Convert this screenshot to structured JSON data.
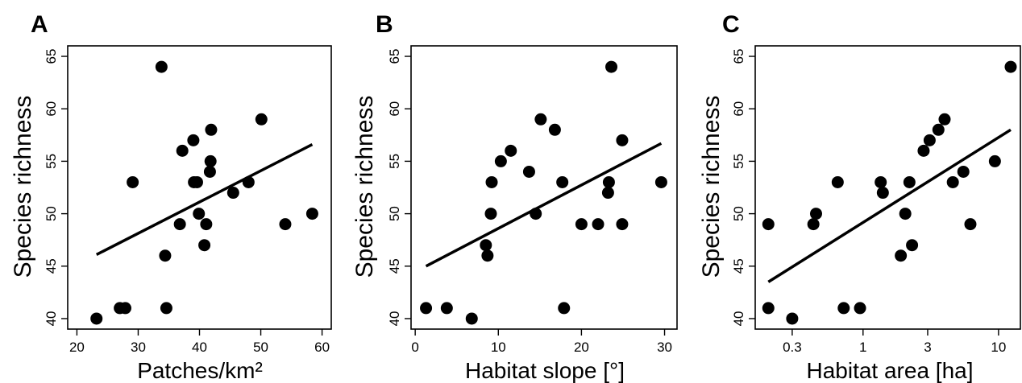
{
  "chart_data": [
    {
      "type": "scatter",
      "panel": "A",
      "xlabel": "Patches/km²",
      "ylabel": "Species richness",
      "xscale": "linear",
      "xlim": [
        18.5,
        61.5
      ],
      "ylim": [
        39,
        66
      ],
      "xticks": [
        20,
        30,
        40,
        50,
        60
      ],
      "xtick_labels": [
        "20",
        "30",
        "40",
        "50",
        "60"
      ],
      "yticks": [
        40,
        45,
        50,
        55,
        60,
        65
      ],
      "ytick_labels": [
        "40",
        "45",
        "50",
        "55",
        "60",
        "65"
      ],
      "points": [
        [
          23.2,
          40
        ],
        [
          27.0,
          41
        ],
        [
          27.9,
          41
        ],
        [
          29.1,
          53
        ],
        [
          33.8,
          64
        ],
        [
          34.4,
          46
        ],
        [
          34.6,
          41
        ],
        [
          36.8,
          49
        ],
        [
          37.2,
          56
        ],
        [
          39.0,
          57
        ],
        [
          39.1,
          53
        ],
        [
          39.6,
          53
        ],
        [
          39.9,
          50
        ],
        [
          40.8,
          47
        ],
        [
          41.1,
          49
        ],
        [
          41.7,
          54
        ],
        [
          41.8,
          55
        ],
        [
          41.9,
          58
        ],
        [
          45.5,
          52
        ],
        [
          48.0,
          53
        ],
        [
          50.1,
          59
        ],
        [
          54.0,
          49
        ],
        [
          58.4,
          50
        ]
      ],
      "fit": [
        [
          23.2,
          46.1
        ],
        [
          58.4,
          56.6
        ]
      ]
    },
    {
      "type": "scatter",
      "panel": "B",
      "xlabel": "Habitat slope [°]",
      "ylabel": "Species richness",
      "xscale": "linear",
      "xlim": [
        -0.5,
        31.5
      ],
      "ylim": [
        39,
        66
      ],
      "xticks": [
        0,
        10,
        20,
        30
      ],
      "xtick_labels": [
        "0",
        "10",
        "20",
        "30"
      ],
      "yticks": [
        40,
        45,
        50,
        55,
        60,
        65
      ],
      "ytick_labels": [
        "40",
        "45",
        "50",
        "55",
        "60",
        "65"
      ],
      "points": [
        [
          1.3,
          41
        ],
        [
          3.8,
          41
        ],
        [
          6.8,
          40
        ],
        [
          8.5,
          47
        ],
        [
          8.7,
          46
        ],
        [
          9.1,
          50
        ],
        [
          9.2,
          53
        ],
        [
          10.3,
          55
        ],
        [
          11.5,
          56
        ],
        [
          13.7,
          54
        ],
        [
          14.5,
          50
        ],
        [
          15.1,
          59
        ],
        [
          16.8,
          58
        ],
        [
          17.7,
          53
        ],
        [
          17.9,
          41
        ],
        [
          20.0,
          49
        ],
        [
          22.0,
          49
        ],
        [
          23.2,
          52
        ],
        [
          23.3,
          53
        ],
        [
          23.6,
          64
        ],
        [
          24.9,
          49
        ],
        [
          24.9,
          57
        ],
        [
          29.6,
          53
        ]
      ],
      "fit": [
        [
          1.3,
          45.0
        ],
        [
          29.6,
          56.7
        ]
      ]
    },
    {
      "type": "scatter",
      "panel": "C",
      "xlabel": "Habitat area [ha]",
      "ylabel": "Species richness",
      "xscale": "log",
      "xlim": [
        0.16,
        14.5
      ],
      "ylim": [
        39,
        66
      ],
      "xticks": [
        0.3,
        1,
        3,
        10
      ],
      "xtick_labels": [
        "0.3",
        "1",
        "3",
        "10"
      ],
      "yticks": [
        40,
        45,
        50,
        55,
        60,
        65
      ],
      "ytick_labels": [
        "40",
        "45",
        "50",
        "55",
        "60",
        "65"
      ],
      "points": [
        [
          0.2,
          49
        ],
        [
          0.2,
          41
        ],
        [
          0.3,
          40
        ],
        [
          0.43,
          49
        ],
        [
          0.45,
          50
        ],
        [
          0.65,
          53
        ],
        [
          0.72,
          41
        ],
        [
          0.95,
          41
        ],
        [
          1.35,
          53
        ],
        [
          1.4,
          52
        ],
        [
          1.9,
          46
        ],
        [
          2.05,
          50
        ],
        [
          2.2,
          53
        ],
        [
          2.3,
          47
        ],
        [
          2.8,
          56
        ],
        [
          3.1,
          57
        ],
        [
          3.6,
          58
        ],
        [
          4.0,
          59
        ],
        [
          4.6,
          53
        ],
        [
          5.5,
          54
        ],
        [
          6.2,
          49
        ],
        [
          9.4,
          55
        ],
        [
          12.3,
          64
        ]
      ],
      "fit": [
        [
          0.2,
          43.5
        ],
        [
          12.3,
          58.0
        ]
      ]
    }
  ]
}
